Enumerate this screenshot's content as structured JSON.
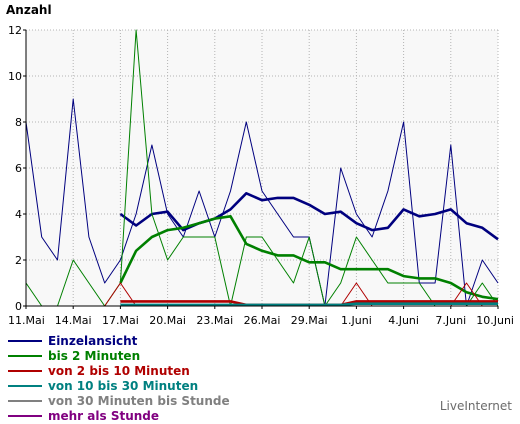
{
  "chart_data": {
    "type": "line",
    "ylabel": "Anzahl",
    "ylim": [
      0,
      12
    ],
    "yticks": [
      0,
      2,
      4,
      6,
      8,
      10,
      12
    ],
    "x_tick_labels": [
      "11.Mai",
      "14.Mai",
      "17.Mai",
      "20.Mai",
      "23.Mai",
      "26.Mai",
      "29.Mai",
      "1.Juni",
      "4.Juni",
      "7.Juni",
      "10.Juni"
    ],
    "x_tick_days": [
      0,
      3,
      6,
      9,
      12,
      15,
      18,
      21,
      24,
      27,
      30
    ],
    "x": [
      0,
      1,
      2,
      3,
      4,
      5,
      6,
      7,
      8,
      9,
      10,
      11,
      12,
      13,
      14,
      15,
      16,
      17,
      18,
      19,
      20,
      21,
      22,
      23,
      24,
      25,
      26,
      27,
      28,
      29,
      30
    ],
    "grid": true,
    "series": [
      {
        "name": "Einzelansicht",
        "kind": "daily",
        "color": "#00007f",
        "values": [
          8,
          3,
          2,
          9,
          3,
          1,
          2,
          4,
          7,
          4,
          3,
          5,
          3,
          5,
          8,
          5,
          4,
          3,
          3,
          0,
          6,
          4,
          3,
          5,
          8,
          1,
          1,
          7,
          0,
          2,
          1
        ]
      },
      {
        "name": "Einzelansicht",
        "kind": "average",
        "color": "#00007f",
        "values": [
          null,
          null,
          null,
          null,
          null,
          null,
          4.0,
          3.5,
          4.0,
          4.1,
          3.3,
          3.6,
          3.8,
          4.2,
          4.9,
          4.6,
          4.7,
          4.7,
          4.4,
          4.0,
          4.1,
          3.6,
          3.3,
          3.4,
          4.2,
          3.9,
          4.0,
          4.2,
          3.6,
          3.4,
          2.9
        ]
      },
      {
        "name": "bis 2 Minuten",
        "kind": "daily",
        "color": "#008000",
        "values": [
          1,
          0,
          0,
          2,
          1,
          0,
          1,
          12,
          4,
          2,
          3,
          3,
          3,
          0,
          3,
          3,
          2,
          1,
          3,
          0,
          1,
          3,
          2,
          1,
          1,
          1,
          0,
          0,
          0,
          1,
          0
        ]
      },
      {
        "name": "bis 2 Minuten",
        "kind": "average",
        "color": "#008000",
        "values": [
          null,
          null,
          null,
          null,
          null,
          null,
          1.0,
          2.4,
          3.0,
          3.3,
          3.4,
          3.6,
          3.8,
          3.9,
          2.7,
          2.4,
          2.2,
          2.2,
          1.9,
          1.9,
          1.6,
          1.6,
          1.6,
          1.6,
          1.3,
          1.2,
          1.2,
          1.0,
          0.6,
          0.4,
          0.3
        ]
      },
      {
        "name": "von 2 bis 10 Minuten",
        "kind": "daily",
        "color": "#b00000",
        "values": [
          0,
          0,
          0,
          0,
          0,
          0,
          1,
          0,
          0,
          0,
          0,
          0,
          0,
          0,
          0,
          0,
          0,
          0,
          0,
          0,
          0,
          1,
          0,
          0,
          0,
          0,
          0,
          0,
          1,
          0,
          0
        ]
      },
      {
        "name": "von 2 bis 10 Minuten",
        "kind": "average",
        "color": "#b00000",
        "values": [
          null,
          null,
          null,
          null,
          null,
          null,
          0.2,
          0.2,
          0.2,
          0.2,
          0.2,
          0.2,
          0.2,
          0.2,
          0.05,
          0.05,
          0.05,
          0.05,
          0.05,
          0.05,
          0.05,
          0.2,
          0.2,
          0.2,
          0.2,
          0.2,
          0.2,
          0.2,
          0.2,
          0.2,
          0.2
        ]
      },
      {
        "name": "von 10 bis 30 Minuten",
        "kind": "average",
        "color": "#008080",
        "values": [
          null,
          null,
          null,
          null,
          null,
          null,
          0.05,
          0.05,
          0.05,
          0.05,
          0.05,
          0.05,
          0.05,
          0.05,
          0.05,
          0.05,
          0.05,
          0.05,
          0.05,
          0.05,
          0.05,
          0.1,
          0.1,
          0.1,
          0.1,
          0.1,
          0.1,
          0.1,
          0.1,
          0.1,
          0.1
        ]
      }
    ]
  },
  "legend": [
    {
      "label": "Einzelansicht",
      "color": "#00007f"
    },
    {
      "label": "bis 2 Minuten",
      "color": "#008000"
    },
    {
      "label": "von 2 bis 10 Minuten",
      "color": "#b00000"
    },
    {
      "label": "von 10 bis 30 Minuten",
      "color": "#008080"
    },
    {
      "label": "von 30 Minuten bis Stunde",
      "color": "#808080"
    },
    {
      "label": "mehr als Stunde",
      "color": "#800080"
    }
  ],
  "brand": "LiveInternet"
}
